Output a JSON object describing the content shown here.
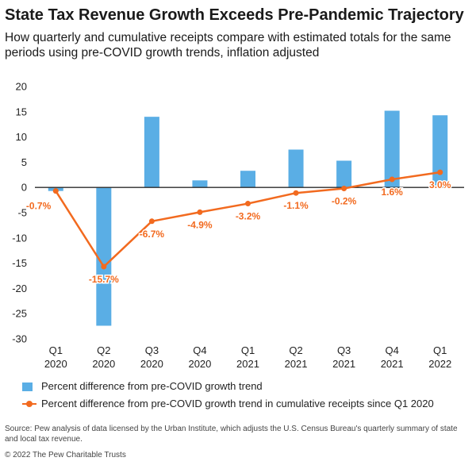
{
  "header": {
    "title": "State Tax Revenue Growth Exceeds Pre-Pandemic Trajectory",
    "subtitle": "How quarterly and cumulative receipts compare with estimated totals for the same periods using pre-COVID growth trends, inflation adjusted"
  },
  "chart_data": {
    "type": "bar",
    "categories": [
      [
        "Q1",
        "2020"
      ],
      [
        "Q2",
        "2020"
      ],
      [
        "Q3",
        "2020"
      ],
      [
        "Q4",
        "2020"
      ],
      [
        "Q1",
        "2021"
      ],
      [
        "Q2",
        "2021"
      ],
      [
        "Q3",
        "2021"
      ],
      [
        "Q4",
        "2021"
      ],
      [
        "Q1",
        "2022"
      ]
    ],
    "ylim": [
      -30,
      20
    ],
    "yticks": [
      20,
      15,
      10,
      5,
      0,
      -5,
      -10,
      -15,
      -20,
      -25,
      -30
    ],
    "grid": false,
    "legend_position": "bottom",
    "series": [
      {
        "name": "Percent difference from pre-COVID growth trend",
        "type": "bar",
        "color": "#5aaee5",
        "values": [
          -0.7,
          -27.4,
          14.0,
          1.4,
          3.3,
          7.5,
          5.3,
          15.2,
          14.3
        ]
      },
      {
        "name": "Percent difference from pre-COVID growth trend in cumulative receipts since Q1 2020",
        "type": "line",
        "color": "#f26a1f",
        "values": [
          -0.7,
          -15.7,
          -6.7,
          -4.9,
          -3.2,
          -1.1,
          -0.2,
          1.6,
          3.0
        ],
        "labels": [
          "-0.7%",
          "-15.7%",
          "-6.7%",
          "-4.9%",
          "-3.2%",
          "-1.1%",
          "-0.2%",
          "1.6%",
          "3.0%"
        ]
      }
    ]
  },
  "footer": {
    "source": "Source: Pew analysis of data licensed by the Urban Institute, which adjusts the U.S. Census Bureau's quarterly summary of state and local tax revenue.",
    "copyright": "© 2022 The Pew Charitable Trusts"
  }
}
